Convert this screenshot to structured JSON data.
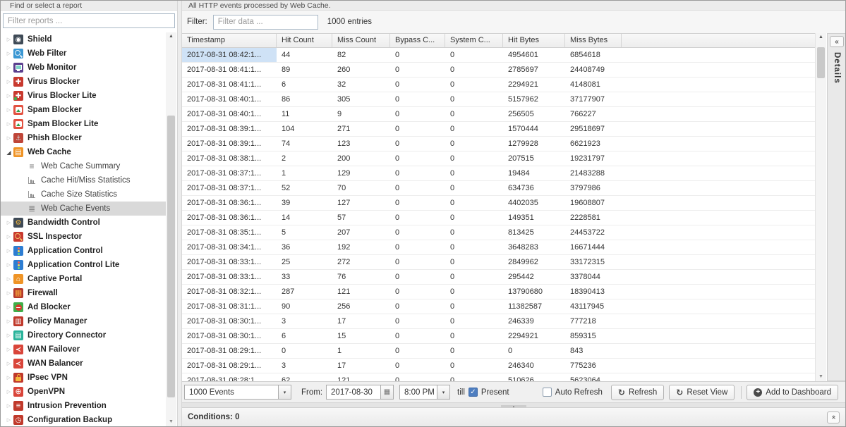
{
  "colors": {
    "selected-cell": "#cfe2f6",
    "sidebar-selected": "#d9d9d9",
    "accent-blue": "#4e7ec0"
  },
  "icons": {
    "up_arrow": "▲",
    "down_arrow": "▼",
    "chevron_down": "▾",
    "calendar": "▦",
    "check": "✓",
    "refresh": "↻",
    "add_plus": "+",
    "collapse_left": "«",
    "collapse_up": "«",
    "splitter_handle": "▲",
    "tree_collapsed": "▷",
    "tree_expanded": "◢"
  },
  "sidebar": {
    "header_label": "Find or select a report",
    "filter_placeholder": "Filter reports ...",
    "items": [
      {
        "label": "Shield",
        "icon": "shield"
      },
      {
        "label": "Web Filter",
        "icon": "web-filter"
      },
      {
        "label": "Web Monitor",
        "icon": "web-monitor"
      },
      {
        "label": "Virus Blocker",
        "icon": "virus-blocker"
      },
      {
        "label": "Virus Blocker Lite",
        "icon": "virus-blocker-lite"
      },
      {
        "label": "Spam Blocker",
        "icon": "spam-blocker"
      },
      {
        "label": "Spam Blocker Lite",
        "icon": "spam-blocker-lite"
      },
      {
        "label": "Phish Blocker",
        "icon": "phish-blocker"
      },
      {
        "label": "Web Cache",
        "icon": "web-cache",
        "expanded": true,
        "children": [
          {
            "label": "Web Cache Summary",
            "icon": "summary-list"
          },
          {
            "label": "Cache Hit/Miss Statistics",
            "icon": "bar-chart"
          },
          {
            "label": "Cache Size Statistics",
            "icon": "bar-chart"
          },
          {
            "label": "Web Cache Events",
            "icon": "event-list",
            "selected": true
          }
        ]
      },
      {
        "label": "Bandwidth Control",
        "icon": "bandwidth-control"
      },
      {
        "label": "SSL Inspector",
        "icon": "ssl-inspector"
      },
      {
        "label": "Application Control",
        "icon": "app-control"
      },
      {
        "label": "Application Control Lite",
        "icon": "app-control-lite"
      },
      {
        "label": "Captive Portal",
        "icon": "captive-portal"
      },
      {
        "label": "Firewall",
        "icon": "firewall"
      },
      {
        "label": "Ad Blocker",
        "icon": "ad-blocker"
      },
      {
        "label": "Policy Manager",
        "icon": "policy-manager"
      },
      {
        "label": "Directory Connector",
        "icon": "directory-connector"
      },
      {
        "label": "WAN Failover",
        "icon": "wan-failover"
      },
      {
        "label": "WAN Balancer",
        "icon": "wan-balancer"
      },
      {
        "label": "IPsec VPN",
        "icon": "ipsec-vpn"
      },
      {
        "label": "OpenVPN",
        "icon": "openvpn"
      },
      {
        "label": "Intrusion Prevention",
        "icon": "intrusion-prevention"
      },
      {
        "label": "Configuration Backup",
        "icon": "config-backup"
      }
    ]
  },
  "main": {
    "description": "All HTTP events processed by Web Cache.",
    "filter_label": "Filter:",
    "filter_placeholder": "Filter data ...",
    "entries_label": "1000 entries",
    "details_label": "Details",
    "conditions_label": "Conditions: 0",
    "table": {
      "columns": [
        "Timestamp",
        "Hit Count",
        "Miss Count",
        "Bypass C...",
        "System C...",
        "Hit Bytes",
        "Miss Bytes"
      ],
      "selected_cell": {
        "row": 0,
        "col": 0
      },
      "rows": [
        [
          "2017-08-31 08:42:1...",
          "44",
          "82",
          "0",
          "0",
          "4954601",
          "6854618"
        ],
        [
          "2017-08-31 08:41:1...",
          "89",
          "260",
          "0",
          "0",
          "2785697",
          "24408749"
        ],
        [
          "2017-08-31 08:41:1...",
          "6",
          "32",
          "0",
          "0",
          "2294921",
          "4148081"
        ],
        [
          "2017-08-31 08:40:1...",
          "86",
          "305",
          "0",
          "0",
          "5157962",
          "37177907"
        ],
        [
          "2017-08-31 08:40:1...",
          "11",
          "9",
          "0",
          "0",
          "256505",
          "766227"
        ],
        [
          "2017-08-31 08:39:1...",
          "104",
          "271",
          "0",
          "0",
          "1570444",
          "29518697"
        ],
        [
          "2017-08-31 08:39:1...",
          "74",
          "123",
          "0",
          "0",
          "1279928",
          "6621923"
        ],
        [
          "2017-08-31 08:38:1...",
          "2",
          "200",
          "0",
          "0",
          "207515",
          "19231797"
        ],
        [
          "2017-08-31 08:37:1...",
          "1",
          "129",
          "0",
          "0",
          "19484",
          "21483288"
        ],
        [
          "2017-08-31 08:37:1...",
          "52",
          "70",
          "0",
          "0",
          "634736",
          "3797986"
        ],
        [
          "2017-08-31 08:36:1...",
          "39",
          "127",
          "0",
          "0",
          "4402035",
          "19608807"
        ],
        [
          "2017-08-31 08:36:1...",
          "14",
          "57",
          "0",
          "0",
          "149351",
          "2228581"
        ],
        [
          "2017-08-31 08:35:1...",
          "5",
          "207",
          "0",
          "0",
          "813425",
          "24453722"
        ],
        [
          "2017-08-31 08:34:1...",
          "36",
          "192",
          "0",
          "0",
          "3648283",
          "16671444"
        ],
        [
          "2017-08-31 08:33:1...",
          "25",
          "272",
          "0",
          "0",
          "2849962",
          "33172315"
        ],
        [
          "2017-08-31 08:33:1...",
          "33",
          "76",
          "0",
          "0",
          "295442",
          "3378044"
        ],
        [
          "2017-08-31 08:32:1...",
          "287",
          "121",
          "0",
          "0",
          "13790680",
          "18390413"
        ],
        [
          "2017-08-31 08:31:1...",
          "90",
          "256",
          "0",
          "0",
          "11382587",
          "43117945"
        ],
        [
          "2017-08-31 08:30:1...",
          "3",
          "17",
          "0",
          "0",
          "246339",
          "777218"
        ],
        [
          "2017-08-31 08:30:1...",
          "6",
          "15",
          "0",
          "0",
          "2294921",
          "859315"
        ],
        [
          "2017-08-31 08:29:1...",
          "0",
          "1",
          "0",
          "0",
          "0",
          "843"
        ],
        [
          "2017-08-31 08:29:1...",
          "3",
          "17",
          "0",
          "0",
          "246340",
          "775236"
        ],
        [
          "2017-08-31 08:28:1...",
          "62",
          "121",
          "0",
          "0",
          "510626",
          "5623064"
        ]
      ]
    },
    "toolbar": {
      "events_value": "1000 Events",
      "from_label": "From:",
      "date_value": "2017-08-30",
      "time_value": "8:00 PM",
      "till_label": "till",
      "present_label": "Present",
      "present_checked": true,
      "auto_refresh_label": "Auto Refresh",
      "auto_refresh_checked": false,
      "refresh_label": "Refresh",
      "reset_label": "Reset View",
      "add_label": "Add to Dashboard"
    }
  }
}
